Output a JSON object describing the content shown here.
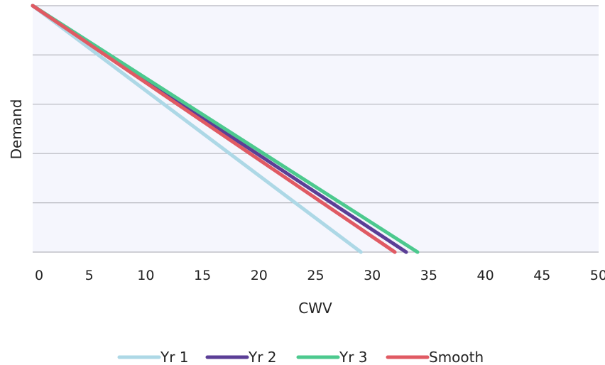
{
  "chart_data": {
    "type": "line",
    "title": "",
    "xlabel": "CWV",
    "ylabel": "Demand",
    "xlim": [
      0,
      50
    ],
    "ylim": [
      0,
      1
    ],
    "xticks": [
      "0",
      "5",
      "10",
      "15",
      "20",
      "25",
      "30",
      "35",
      "40",
      "45",
      "50"
    ],
    "ytick_labels_shown": false,
    "grid": "horizontal",
    "grid_lines": 6,
    "legend_position": "bottom",
    "colors": {
      "plot_background": "#f5f6fd",
      "grid": "#b5b5bd"
    },
    "series": [
      {
        "name": "Yr 1",
        "color": "#add8e6",
        "x": [
          0,
          29
        ],
        "y": [
          1,
          0
        ]
      },
      {
        "name": "Yr 2",
        "color": "#5b3e96",
        "x": [
          0,
          33
        ],
        "y": [
          1,
          0
        ]
      },
      {
        "name": "Yr 3",
        "color": "#4cc98e",
        "x": [
          0,
          34
        ],
        "y": [
          1,
          0
        ]
      },
      {
        "name": "Smooth",
        "color": "#e05a63",
        "x": [
          0,
          32
        ],
        "y": [
          1,
          0
        ]
      }
    ]
  }
}
